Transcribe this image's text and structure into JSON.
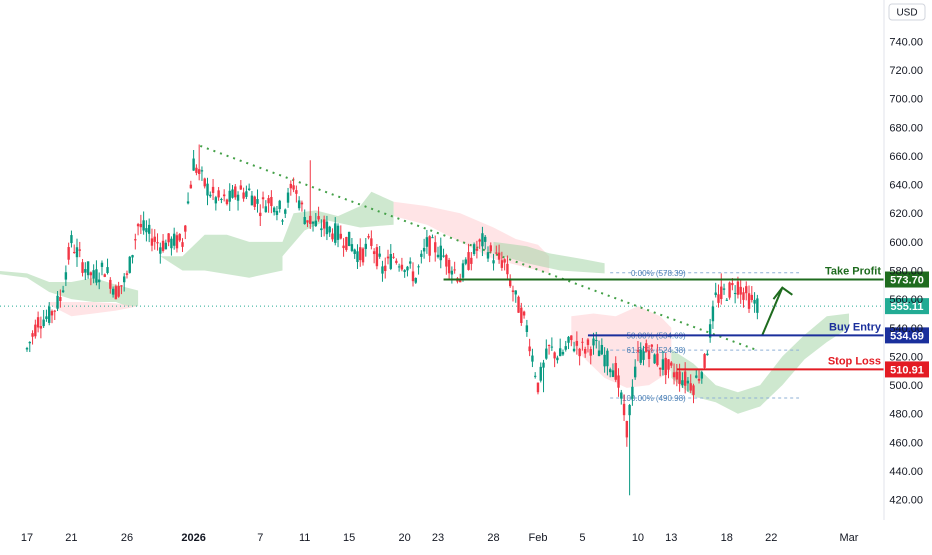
{
  "currency": "USD",
  "chart_data": {
    "type": "candlestick",
    "y_axis": {
      "range": [
        410,
        760
      ],
      "ticks": [
        "420.00",
        "440.00",
        "460.00",
        "480.00",
        "500.00",
        "520.00",
        "540.00",
        "560.00",
        "580.00",
        "600.00",
        "620.00",
        "640.00",
        "660.00",
        "680.00",
        "700.00",
        "720.00",
        "740.00"
      ]
    },
    "x_axis": {
      "tick_labels": [
        {
          "label": "17",
          "day": 0,
          "bold": false
        },
        {
          "label": "21",
          "day": 4,
          "bold": false
        },
        {
          "label": "26",
          "day": 9,
          "bold": false
        },
        {
          "label": "2026",
          "day": 15,
          "bold": true
        },
        {
          "label": "7",
          "day": 21,
          "bold": false
        },
        {
          "label": "11",
          "day": 25,
          "bold": false
        },
        {
          "label": "15",
          "day": 29,
          "bold": false
        },
        {
          "label": "20",
          "day": 34,
          "bold": false
        },
        {
          "label": "23",
          "day": 37,
          "bold": false
        },
        {
          "label": "28",
          "day": 42,
          "bold": false
        },
        {
          "label": "Feb",
          "day": 46,
          "bold": false
        },
        {
          "label": "5",
          "day": 50,
          "bold": false
        },
        {
          "label": "10",
          "day": 55,
          "bold": false
        },
        {
          "label": "13",
          "day": 58,
          "bold": false
        },
        {
          "label": "18",
          "day": 63,
          "bold": false
        },
        {
          "label": "22",
          "day": 67,
          "bold": false
        },
        {
          "label": "Mar",
          "day": 74,
          "bold": false
        }
      ]
    },
    "candles_anchor_points": [
      [
        0,
        525
      ],
      [
        1,
        545
      ],
      [
        2,
        548
      ],
      [
        3,
        560
      ],
      [
        4,
        600
      ],
      [
        5,
        585
      ],
      [
        6,
        575
      ],
      [
        7,
        582
      ],
      [
        8,
        565
      ],
      [
        9,
        575
      ],
      [
        10,
        612
      ],
      [
        11,
        605
      ],
      [
        12,
        598
      ],
      [
        13,
        600
      ],
      [
        14,
        600
      ],
      [
        15,
        655
      ],
      [
        16,
        640
      ],
      [
        17,
        630
      ],
      [
        18,
        628
      ],
      [
        19,
        635
      ],
      [
        20,
        635
      ],
      [
        21,
        625
      ],
      [
        22,
        630
      ],
      [
        23,
        620
      ],
      [
        24,
        640
      ],
      [
        25,
        618
      ],
      [
        26,
        612
      ],
      [
        27,
        610
      ],
      [
        28,
        605
      ],
      [
        29,
        600
      ],
      [
        30,
        590
      ],
      [
        31,
        600
      ],
      [
        32,
        580
      ],
      [
        33,
        590
      ],
      [
        34,
        585
      ],
      [
        35,
        575
      ],
      [
        36,
        598
      ],
      [
        37,
        595
      ],
      [
        38,
        585
      ],
      [
        39,
        575
      ],
      [
        40,
        590
      ],
      [
        41,
        600
      ],
      [
        42,
        590
      ],
      [
        43,
        585
      ],
      [
        44,
        560
      ],
      [
        45,
        540
      ],
      [
        46,
        500
      ],
      [
        47,
        525
      ],
      [
        48,
        520
      ],
      [
        49,
        530
      ],
      [
        50,
        525
      ],
      [
        51,
        528
      ],
      [
        52,
        520
      ],
      [
        53,
        510
      ],
      [
        54,
        470
      ],
      [
        55,
        520
      ],
      [
        56,
        525
      ],
      [
        57,
        515
      ],
      [
        58,
        510
      ],
      [
        59,
        505
      ],
      [
        60,
        500
      ],
      [
        61,
        515
      ],
      [
        62,
        560
      ],
      [
        63,
        565
      ],
      [
        64,
        570
      ],
      [
        65,
        560
      ],
      [
        66,
        555
      ]
    ],
    "current_price": "555.11",
    "levels": [
      {
        "name": "Take Profit",
        "value": "573.70",
        "color": "#1e6b1e"
      },
      {
        "name": "Buy Entry",
        "value": "534.69",
        "color": "#1a2f9c"
      },
      {
        "name": "Stop Loss",
        "value": "510.91",
        "color": "#e31b23"
      }
    ],
    "fibonacci": [
      {
        "label": "0.00% (578.39)",
        "value": 578.39
      },
      {
        "label": "50.00% (534.69)",
        "value": 534.69
      },
      {
        "label": "61.80% (524.38)",
        "value": 524.38
      },
      {
        "label": "100.00% (490.98)",
        "value": 490.98
      }
    ],
    "colors": {
      "up": "#089981",
      "down": "#f23645",
      "cloud_bull": "#a5d6a7",
      "cloud_bear": "#ffcdd2",
      "trendline": "#43a047",
      "current": "#22ab94"
    }
  }
}
